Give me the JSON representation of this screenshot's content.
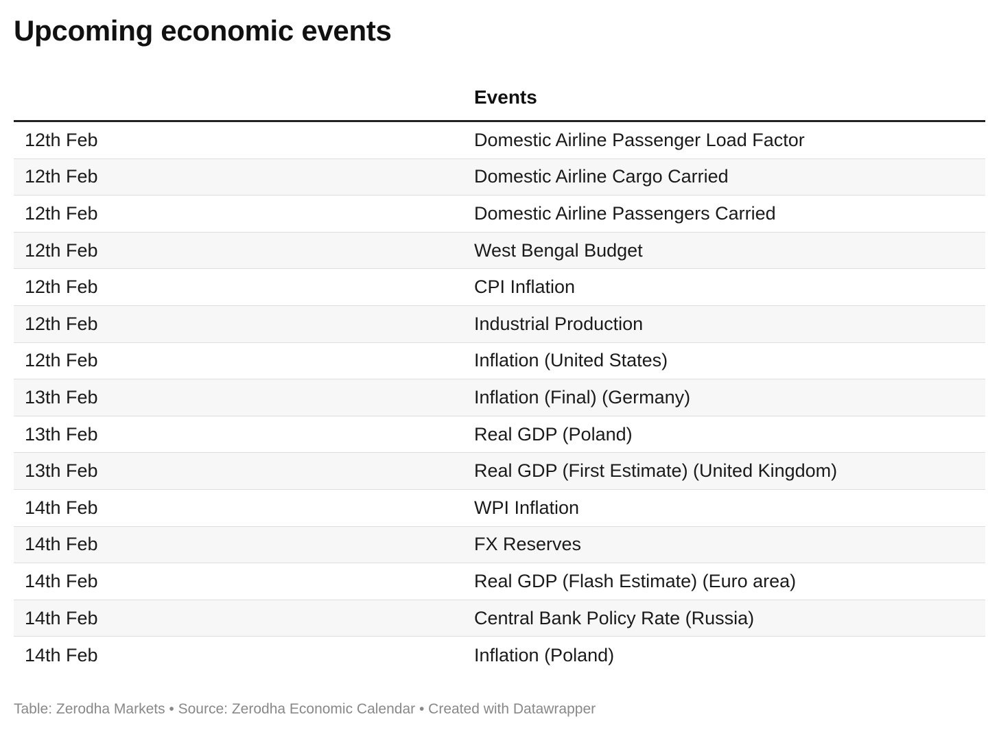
{
  "title": "Upcoming economic events",
  "table": {
    "headers": [
      "",
      "Events"
    ],
    "rows": [
      {
        "date": "12th Feb",
        "event": "Domestic Airline Passenger Load Factor"
      },
      {
        "date": "12th Feb",
        "event": "Domestic Airline Cargo Carried"
      },
      {
        "date": "12th Feb",
        "event": "Domestic Airline Passengers Carried"
      },
      {
        "date": "12th Feb",
        "event": "West Bengal Budget"
      },
      {
        "date": "12th Feb",
        "event": "CPI Inflation"
      },
      {
        "date": "12th Feb",
        "event": "Industrial Production"
      },
      {
        "date": "12th Feb",
        "event": "Inflation (United States)"
      },
      {
        "date": "13th Feb",
        "event": "Inflation (Final) (Germany)"
      },
      {
        "date": "13th Feb",
        "event": "Real GDP (Poland)"
      },
      {
        "date": "13th Feb",
        "event": "Real GDP (First Estimate) (United Kingdom)"
      },
      {
        "date": "14th Feb",
        "event": "WPI Inflation"
      },
      {
        "date": "14th Feb",
        "event": "FX Reserves"
      },
      {
        "date": "14th Feb",
        "event": "Real GDP (Flash Estimate) (Euro area)"
      },
      {
        "date": "14th Feb",
        "event": "Central Bank Policy Rate (Russia)"
      },
      {
        "date": "14th Feb",
        "event": "Inflation (Poland)"
      }
    ]
  },
  "footer": "Table: Zerodha Markets • Source: Zerodha Economic Calendar • Created with Datawrapper",
  "colors": {
    "header_rule": "#222222",
    "row_stripe": "#f7f7f7",
    "row_divider": "#dedede",
    "footer_text": "#888888"
  }
}
